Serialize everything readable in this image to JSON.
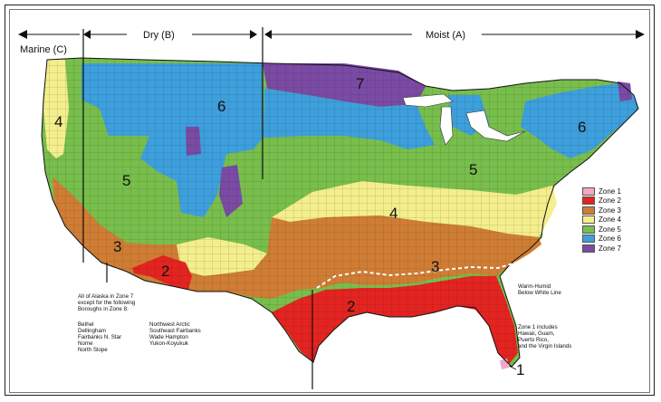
{
  "header": {
    "marine": "Marine (C)",
    "dry": "Dry (B)",
    "moist": "Moist (A)"
  },
  "zone_labels": {
    "z1": "1",
    "z2a": "2",
    "z2b": "2",
    "z3a": "3",
    "z3b": "3",
    "z4a": "4",
    "z4b": "4",
    "z5a": "5",
    "z5b": "5",
    "z6a": "6",
    "z6b": "6",
    "z7": "7"
  },
  "legend": [
    {
      "label": "Zone 1",
      "color": "#f4a6c6"
    },
    {
      "label": "Zone 2",
      "color": "#e32420"
    },
    {
      "label": "Zone 3",
      "color": "#cf7d34"
    },
    {
      "label": "Zone 4",
      "color": "#f4ee8c"
    },
    {
      "label": "Zone 5",
      "color": "#78be4c"
    },
    {
      "label": "Zone 6",
      "color": "#3d9fdc"
    },
    {
      "label": "Zone 7",
      "color": "#7a4aa4"
    }
  ],
  "notes": {
    "warm_humid_1": "Warm-Humid",
    "warm_humid_2": "Below White Line",
    "zone1_1": "Zone 1 includes",
    "zone1_2": "Hawaii, Guam,",
    "zone1_3": "Puerto Rico,",
    "zone1_4": "and the Virgin Islands",
    "alaska_1": "All of Alaska in Zone 7",
    "alaska_2": "except for the following",
    "alaska_3": "Boroughs in Zone 8:"
  },
  "boroughs_left": [
    "Bethel",
    "Dellingham",
    "Fairbanks N. Star",
    "Nome",
    "North Slope"
  ],
  "boroughs_right": [
    "Northwest Arctic",
    "Southeast Fairbanks",
    "Wade Hampton",
    "Yukon-Koyukuk"
  ]
}
